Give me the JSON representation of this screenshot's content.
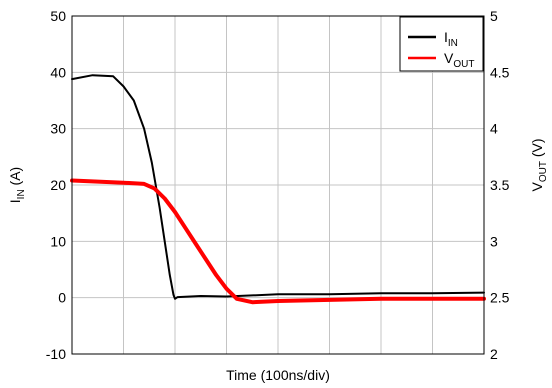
{
  "chart_data": {
    "type": "line",
    "xlabel": "Time (100ns/div)",
    "ylabel_left": {
      "main": "I",
      "sub": "IN",
      "unit": " (A)"
    },
    "ylabel_right": {
      "main": "V",
      "sub": "OUT",
      "unit": " (V)"
    },
    "x_divisions": 8,
    "xlim": [
      0,
      8
    ],
    "ylim_left": [
      -10,
      50
    ],
    "ylim_right": [
      2,
      5
    ],
    "yticks_left": [
      "-10",
      "0",
      "10",
      "20",
      "30",
      "40",
      "50"
    ],
    "yticks_right": [
      "2",
      "2.5",
      "3",
      "3.5",
      "4",
      "4.5",
      "5"
    ],
    "grid": true,
    "legend_position": "top-right",
    "series": [
      {
        "name": {
          "main": "I",
          "sub": "IN"
        },
        "axis": "left",
        "color": "#000000",
        "x": [
          0,
          0.4,
          0.8,
          1.0,
          1.2,
          1.4,
          1.55,
          1.7,
          1.8,
          1.9,
          1.97,
          2.0,
          2.05,
          2.5,
          3.0,
          4.0,
          5.0,
          6.0,
          7.0,
          8.0
        ],
        "y": [
          38.8,
          39.5,
          39.3,
          37.5,
          35.0,
          30.0,
          24.0,
          16.0,
          10.0,
          4.0,
          0.5,
          -0.2,
          0.1,
          0.3,
          0.2,
          0.6,
          0.6,
          0.8,
          0.8,
          0.9
        ]
      },
      {
        "name": {
          "main": "V",
          "sub": "OUT"
        },
        "axis": "right",
        "color": "#ff0000",
        "x": [
          0,
          0.5,
          1.0,
          1.4,
          1.6,
          1.8,
          2.0,
          2.2,
          2.4,
          2.6,
          2.8,
          3.0,
          3.2,
          3.5,
          4.0,
          5.0,
          6.0,
          7.0,
          8.0
        ],
        "y": [
          3.54,
          3.53,
          3.52,
          3.51,
          3.47,
          3.38,
          3.26,
          3.12,
          2.98,
          2.84,
          2.7,
          2.58,
          2.49,
          2.46,
          2.47,
          2.48,
          2.49,
          2.49,
          2.49
        ]
      }
    ]
  }
}
